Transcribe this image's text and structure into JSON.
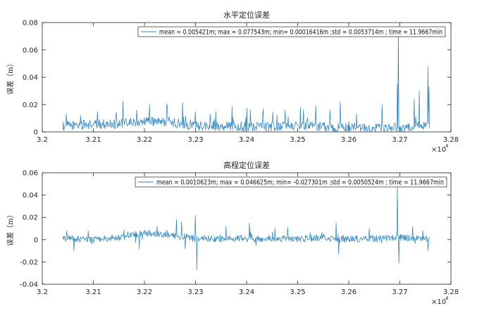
{
  "chart_data": [
    {
      "type": "line",
      "title": "水平定位误差",
      "ylabel": "误差（m）",
      "xlabel": "",
      "x_multiplier_label": "×10",
      "x_multiplier_exp": "4",
      "xlim": [
        3.2,
        3.28
      ],
      "ylim": [
        0,
        0.08
      ],
      "xticks": [
        "3.2",
        "3.21",
        "3.22",
        "3.23",
        "3.24",
        "3.25",
        "3.26",
        "3.27",
        "3.28"
      ],
      "yticks": [
        "0",
        "0.02",
        "0.04",
        "0.06",
        "0.08"
      ],
      "grid": false,
      "legend_position": "top-right",
      "series": [
        {
          "name": "mean = 0.005421m; max = 0.077543m; min= 0.00016416m ;std = 0.0053714m ; time = 11.9667min",
          "color": "#2e86c1",
          "x_range": [
            3.204,
            3.2758
          ],
          "points_count": 720,
          "baseline_profile": [
            [
              3.204,
              0.0045
            ],
            [
              3.21,
              0.0055
            ],
            [
              3.215,
              0.006
            ],
            [
              3.22,
              0.008
            ],
            [
              3.225,
              0.007
            ],
            [
              3.23,
              0.0045
            ],
            [
              3.235,
              0.0045
            ],
            [
              3.24,
              0.004
            ],
            [
              3.245,
              0.004
            ],
            [
              3.25,
              0.0045
            ],
            [
              3.255,
              0.004
            ],
            [
              3.26,
              0.003
            ],
            [
              3.265,
              0.0025
            ],
            [
              3.27,
              0.003
            ],
            [
              3.2758,
              0.005
            ]
          ],
          "spikes": [
            [
              3.2047,
              0.013
            ],
            [
              3.2075,
              0.012
            ],
            [
              3.2108,
              0.015
            ],
            [
              3.2158,
              0.0225
            ],
            [
              3.2185,
              0.016
            ],
            [
              3.221,
              0.02
            ],
            [
              3.2245,
              0.019
            ],
            [
              3.2275,
              0.0215
            ],
            [
              3.23,
              0.015
            ],
            [
              3.234,
              0.015
            ],
            [
              3.2372,
              0.0185
            ],
            [
              3.24,
              0.0175
            ],
            [
              3.2432,
              0.017
            ],
            [
              3.2475,
              0.016
            ],
            [
              3.2505,
              0.018
            ],
            [
              3.2535,
              0.019
            ],
            [
              3.2563,
              0.016
            ],
            [
              3.2583,
              0.022
            ],
            [
              3.2615,
              0.013
            ],
            [
              3.2665,
              0.02
            ],
            [
              3.2695,
              0.035
            ],
            [
              3.2697,
              0.0775
            ],
            [
              3.2728,
              0.024
            ],
            [
              3.2738,
              0.03
            ],
            [
              3.2755,
              0.048
            ],
            [
              3.2757,
              0.033
            ]
          ]
        }
      ]
    },
    {
      "type": "line",
      "title": "高程定位误差",
      "ylabel": "误差（m）",
      "xlabel": "",
      "x_multiplier_label": "×10",
      "x_multiplier_exp": "4",
      "xlim": [
        3.2,
        3.28
      ],
      "ylim": [
        -0.04,
        0.06
      ],
      "xticks": [
        "3.2",
        "3.21",
        "3.22",
        "3.23",
        "3.24",
        "3.25",
        "3.26",
        "3.27",
        "3.28"
      ],
      "yticks": [
        "-0.04",
        "-0.02",
        "0",
        "0.02",
        "0.04",
        "0.06"
      ],
      "grid": false,
      "legend_position": "top-right",
      "series": [
        {
          "name": "mean = 0.0010623m; max = 0.046625m; min= -0.027301m ;std = 0.0050524m ; time = 11.9667min",
          "color": "#2e86c1",
          "x_range": [
            3.204,
            3.2758
          ],
          "points_count": 720,
          "baseline_profile": [
            [
              3.204,
              0.001
            ],
            [
              3.21,
              0.0
            ],
            [
              3.215,
              0.002
            ],
            [
              3.22,
              0.006
            ],
            [
              3.225,
              0.004
            ],
            [
              3.23,
              0.001
            ],
            [
              3.235,
              0.0005
            ],
            [
              3.24,
              0.001
            ],
            [
              3.245,
              0.001
            ],
            [
              3.25,
              0.001
            ],
            [
              3.255,
              0.001
            ],
            [
              3.26,
              0.0005
            ],
            [
              3.265,
              0.001
            ],
            [
              3.27,
              0.002
            ],
            [
              3.2758,
              0.0
            ]
          ],
          "spikes": [
            [
              3.2048,
              0.008
            ],
            [
              3.2062,
              -0.01
            ],
            [
              3.209,
              0.008
            ],
            [
              3.216,
              0.009
            ],
            [
              3.219,
              -0.008
            ],
            [
              3.2225,
              0.012
            ],
            [
              3.2263,
              0.018
            ],
            [
              3.2273,
              0.016
            ],
            [
              3.228,
              -0.008
            ],
            [
              3.23,
              0.022
            ],
            [
              3.2303,
              -0.0273
            ],
            [
              3.236,
              0.012
            ],
            [
              3.2405,
              0.015
            ],
            [
              3.2455,
              0.01
            ],
            [
              3.248,
              0.011
            ],
            [
              3.2575,
              0.015
            ],
            [
              3.258,
              -0.013
            ],
            [
              3.264,
              0.01
            ],
            [
              3.2695,
              0.0466
            ],
            [
              3.2698,
              -0.021
            ],
            [
              3.2725,
              0.012
            ],
            [
              3.2745,
              0.008
            ],
            [
              3.2755,
              -0.01
            ]
          ]
        }
      ]
    }
  ]
}
